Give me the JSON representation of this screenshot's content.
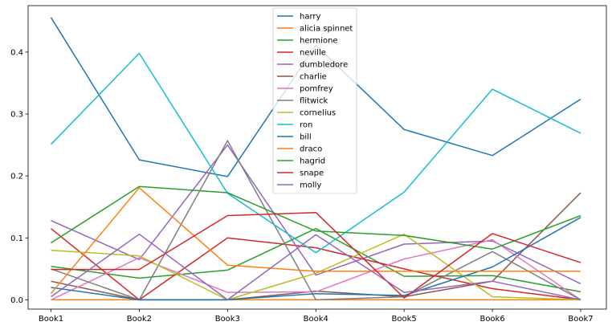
{
  "chart_data": {
    "type": "line",
    "categories": [
      "Book1",
      "Book2",
      "Book3",
      "Book4",
      "Book5",
      "Book6",
      "Book7"
    ],
    "ylim": [
      -0.015,
      0.475
    ],
    "yticks": [
      0.0,
      0.1,
      0.2,
      0.3,
      0.4
    ],
    "ytick_labels": [
      "0.0",
      "0.1",
      "0.2",
      "0.3",
      "0.4"
    ],
    "grid": false,
    "legend": "top-center",
    "series": [
      {
        "name": "harry",
        "color": "#1f77b4",
        "values": [
          0.456,
          0.226,
          0.199,
          0.411,
          0.275,
          0.233,
          0.324
        ]
      },
      {
        "name": "alicia spinnet",
        "color": "#ff7f0e",
        "values": [
          0.0,
          0.0,
          0.0,
          0.0,
          0.0,
          0.0,
          0.0
        ]
      },
      {
        "name": "hermione",
        "color": "#2ca02c",
        "values": [
          0.054,
          0.035,
          0.048,
          0.115,
          0.038,
          0.039,
          0.013
        ]
      },
      {
        "name": "neville",
        "color": "#d62728",
        "values": [
          0.115,
          0.0,
          0.1,
          0.084,
          0.05,
          0.018,
          0.0
        ]
      },
      {
        "name": "dumbledore",
        "color": "#9467bd",
        "values": [
          0.128,
          0.065,
          0.25,
          0.04,
          0.09,
          0.095,
          0.026
        ]
      },
      {
        "name": "charlie",
        "color": "#8c564b",
        "values": [
          0.03,
          0.0,
          0.0,
          0.014,
          0.005,
          0.03,
          0.173
        ]
      },
      {
        "name": "pomfrey",
        "color": "#e377c2",
        "values": [
          0.0,
          0.068,
          0.012,
          0.013,
          0.066,
          0.097,
          0.0
        ]
      },
      {
        "name": "flitwick",
        "color": "#7f7f7f",
        "values": [
          0.05,
          0.0,
          0.257,
          0.0,
          0.005,
          0.078,
          0.0
        ]
      },
      {
        "name": "cornelius",
        "color": "#bcbd22",
        "values": [
          0.08,
          0.071,
          0.0,
          0.043,
          0.106,
          0.005,
          0.0
        ]
      },
      {
        "name": "ron",
        "color": "#17becf",
        "values": [
          0.251,
          0.398,
          0.172,
          0.076,
          0.174,
          0.34,
          0.269
        ]
      },
      {
        "name": "bill",
        "color": "#1f77b4",
        "values": [
          0.02,
          0.0,
          0.0,
          0.01,
          0.007,
          0.053,
          0.133
        ]
      },
      {
        "name": "draco",
        "color": "#ff7f0e",
        "values": [
          0.01,
          0.181,
          0.056,
          0.046,
          0.046,
          0.046,
          0.046
        ]
      },
      {
        "name": "hagrid",
        "color": "#2ca02c",
        "values": [
          0.092,
          0.183,
          0.173,
          0.111,
          0.104,
          0.082,
          0.136
        ]
      },
      {
        "name": "snape",
        "color": "#d62728",
        "values": [
          0.049,
          0.049,
          0.136,
          0.141,
          0.003,
          0.107,
          0.06
        ]
      },
      {
        "name": "molly",
        "color": "#9467bd",
        "values": [
          0.005,
          0.106,
          0.0,
          0.105,
          0.012,
          0.03,
          0.0
        ]
      }
    ]
  }
}
